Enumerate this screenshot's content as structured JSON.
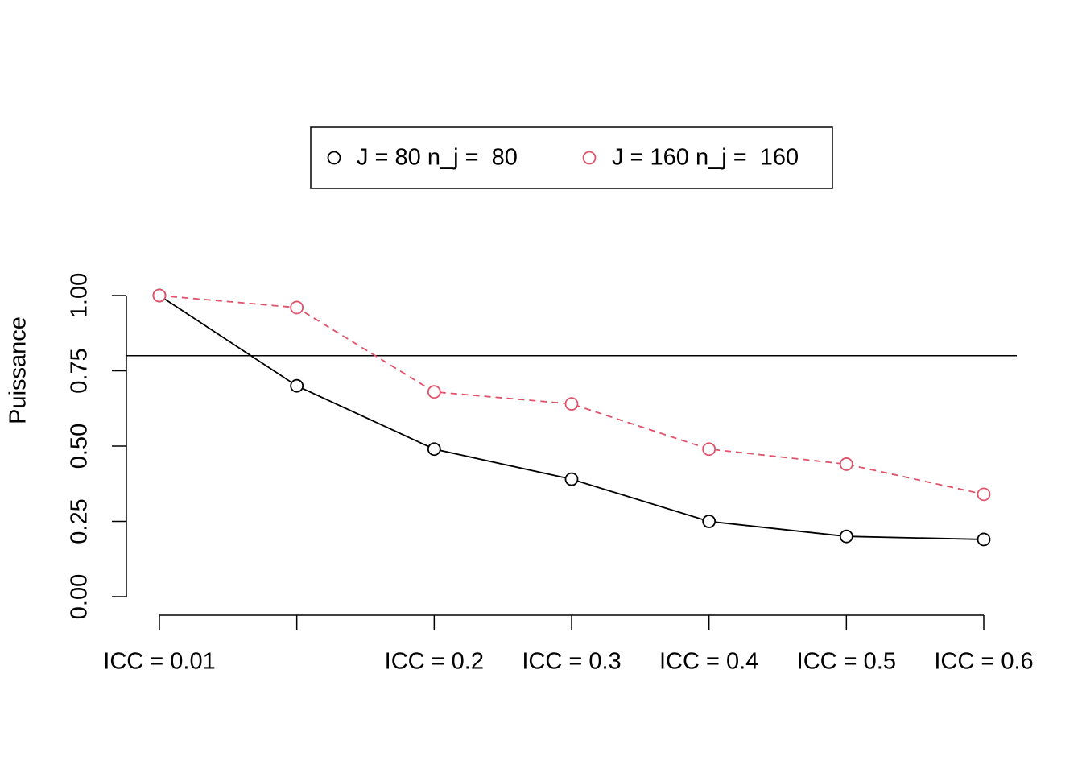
{
  "chart_data": {
    "type": "line",
    "y_label": "Puissance",
    "categories": [
      "ICC = 0.01",
      null,
      "ICC = 0.2",
      "ICC = 0.3",
      "ICC = 0.4",
      "ICC = 0.5",
      "ICC = 0.6"
    ],
    "series": [
      {
        "name": "J = 80 n_j =  80",
        "color": "#000000",
        "linestyle": "solid",
        "values": [
          1.0,
          0.7,
          0.49,
          0.39,
          0.25,
          0.2,
          0.19
        ]
      },
      {
        "name": "J = 160 n_j =  160",
        "color": "#df536b",
        "linestyle": "dashed",
        "values": [
          1.0,
          0.96,
          0.68,
          0.64,
          0.49,
          0.44,
          0.34
        ]
      }
    ],
    "ylim": [
      0,
      1
    ],
    "yticks": [
      {
        "value": 0,
        "label": "0.00"
      },
      0.25,
      {
        "value": 0.5,
        "label": "0.50"
      },
      0.75,
      {
        "value": 1,
        "label": "1.00"
      }
    ],
    "hline": 0.8,
    "legend": "top",
    "grid": false
  }
}
